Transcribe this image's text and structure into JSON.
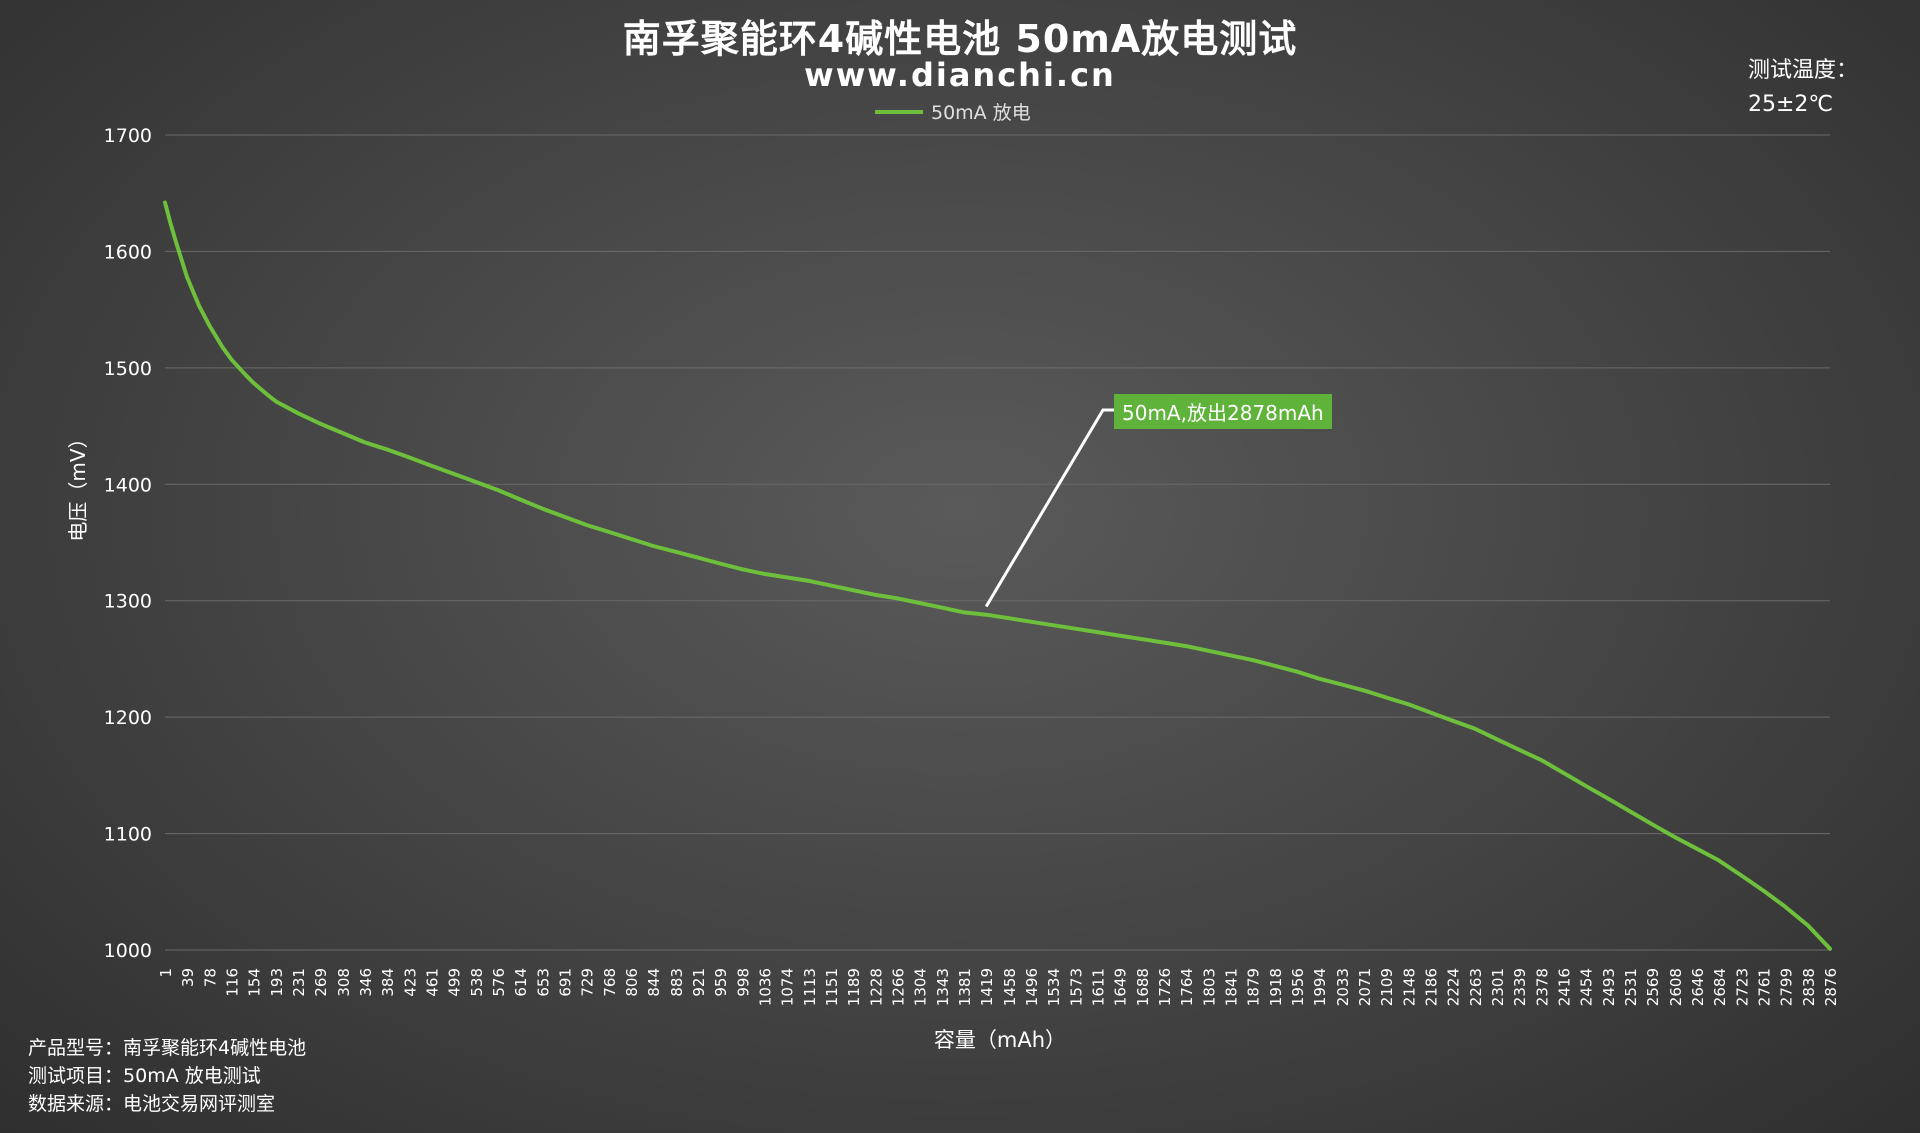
{
  "header": {
    "title": "南孚聚能环4碱性电池 50mA放电测试",
    "subtitle": "www.dianchi.cn",
    "temperature_label": "测试温度：",
    "temperature_value": "25±2℃"
  },
  "footer": {
    "model_label": "产品型号：",
    "model_value": "南孚聚能环4碱性电池",
    "item_label": "测试项目：",
    "item_value": "50mA 放电测试",
    "source_label": "数据来源：",
    "source_value": "电池交易网评测室"
  },
  "colors": {
    "line": "#6dbf3c",
    "annotation": "#5fb33a",
    "grid": "#6a6a6a"
  },
  "chart_data": {
    "type": "line",
    "title": "南孚聚能环4碱性电池 50mA放电测试",
    "subtitle": "www.dianchi.cn",
    "xlabel": "容量（mAh）",
    "ylabel": "电压（mV）",
    "ylim": [
      1000,
      1700
    ],
    "yticks": [
      1000,
      1100,
      1200,
      1300,
      1400,
      1500,
      1600,
      1700
    ],
    "xlim": [
      1,
      2876
    ],
    "xticks": [
      1,
      39,
      78,
      116,
      154,
      193,
      231,
      269,
      308,
      346,
      384,
      423,
      461,
      499,
      538,
      576,
      614,
      653,
      691,
      729,
      768,
      806,
      844,
      883,
      921,
      959,
      998,
      1036,
      1074,
      1113,
      1151,
      1189,
      1228,
      1266,
      1304,
      1343,
      1381,
      1419,
      1458,
      1496,
      1534,
      1573,
      1611,
      1649,
      1688,
      1726,
      1764,
      1803,
      1841,
      1879,
      1918,
      1956,
      1994,
      2033,
      2071,
      2109,
      2148,
      2186,
      2224,
      2263,
      2301,
      2339,
      2378,
      2416,
      2454,
      2493,
      2531,
      2569,
      2608,
      2646,
      2684,
      2723,
      2761,
      2799,
      2838,
      2876
    ],
    "grid": "horizontal",
    "legend_position": "top-center",
    "series": [
      {
        "name": "50mA 放电",
        "x": [
          1,
          10,
          20,
          39,
          60,
          78,
          100,
          116,
          140,
          154,
          180,
          193,
          231,
          269,
          308,
          346,
          384,
          423,
          461,
          499,
          538,
          576,
          614,
          653,
          691,
          729,
          768,
          806,
          844,
          883,
          921,
          959,
          998,
          1036,
          1074,
          1113,
          1151,
          1189,
          1228,
          1266,
          1304,
          1343,
          1381,
          1419,
          1458,
          1496,
          1534,
          1573,
          1611,
          1649,
          1688,
          1726,
          1764,
          1803,
          1841,
          1879,
          1918,
          1956,
          1994,
          2033,
          2071,
          2109,
          2148,
          2186,
          2224,
          2263,
          2301,
          2339,
          2378,
          2416,
          2454,
          2493,
          2531,
          2569,
          2608,
          2646,
          2684,
          2723,
          2761,
          2799,
          2838,
          2876
        ],
        "y": [
          1642,
          1625,
          1608,
          1578,
          1553,
          1536,
          1518,
          1507,
          1494,
          1487,
          1476,
          1471,
          1461,
          1452,
          1444,
          1436,
          1430,
          1423,
          1416,
          1409,
          1402,
          1395,
          1387,
          1379,
          1372,
          1365,
          1359,
          1353,
          1347,
          1342,
          1337,
          1332,
          1327,
          1323,
          1320,
          1317,
          1313,
          1309,
          1305,
          1302,
          1298,
          1294,
          1290,
          1288,
          1285,
          1282,
          1279,
          1276,
          1273,
          1270,
          1267,
          1264,
          1261,
          1257,
          1253,
          1249,
          1244,
          1239,
          1233,
          1228,
          1223,
          1217,
          1211,
          1204,
          1197,
          1190,
          1181,
          1172,
          1163,
          1152,
          1141,
          1130,
          1119,
          1108,
          1097,
          1087,
          1077,
          1064,
          1051,
          1037,
          1021,
          1001
        ]
      }
    ],
    "annotations": [
      {
        "text": "50mA,放出2878mAh",
        "x": 1419,
        "y": 1295
      }
    ]
  }
}
